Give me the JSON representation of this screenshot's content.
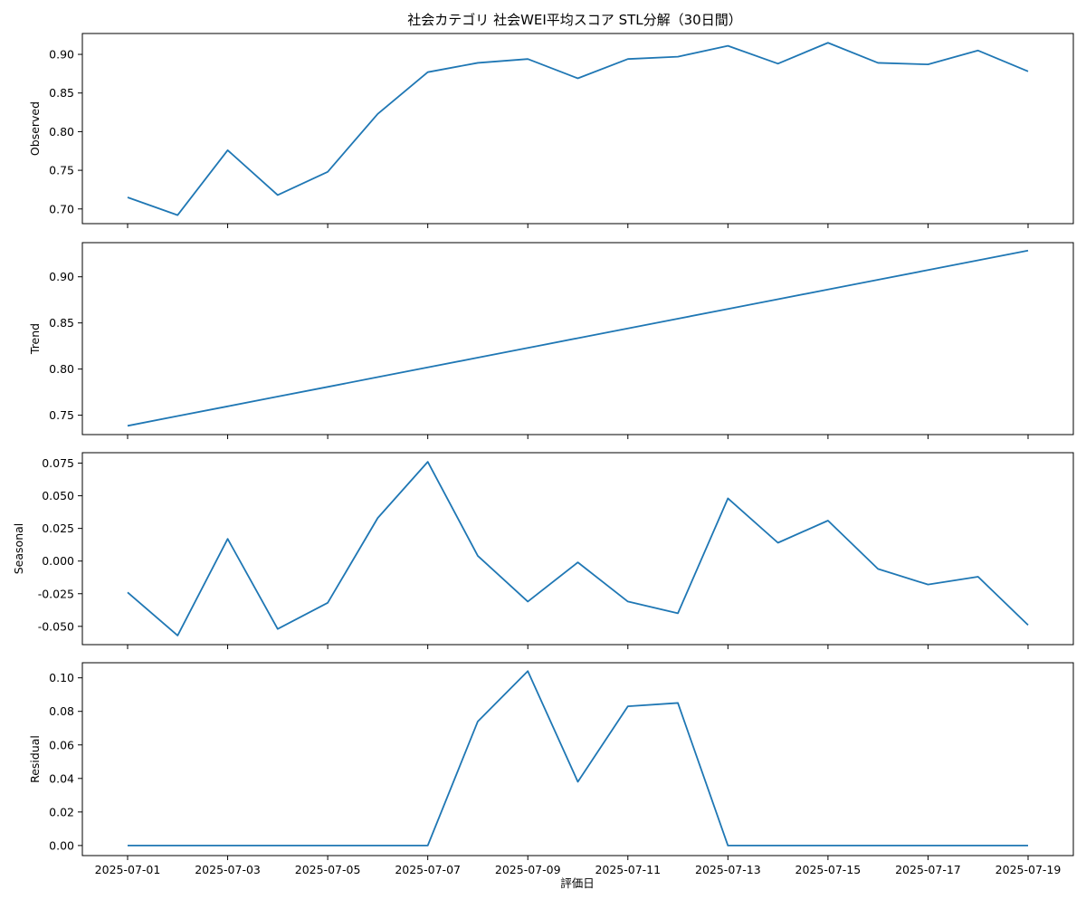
{
  "chart_data": {
    "type": "line",
    "title": "社会カテゴリ 社会WEI平均スコア STL分解（30日間）",
    "xlabel": "評価日",
    "x": [
      "2025-07-01",
      "2025-07-02",
      "2025-07-03",
      "2025-07-04",
      "2025-07-05",
      "2025-07-06",
      "2025-07-07",
      "2025-07-08",
      "2025-07-09",
      "2025-07-10",
      "2025-07-11",
      "2025-07-12",
      "2025-07-13",
      "2025-07-14",
      "2025-07-15",
      "2025-07-16",
      "2025-07-17",
      "2025-07-18",
      "2025-07-19"
    ],
    "x_ticks": [
      "2025-07-01",
      "2025-07-03",
      "2025-07-05",
      "2025-07-07",
      "2025-07-09",
      "2025-07-11",
      "2025-07-13",
      "2025-07-15",
      "2025-07-17",
      "2025-07-19"
    ],
    "line_color": "#1f77b4",
    "grid": false,
    "panels": [
      {
        "name": "observed",
        "ylabel": "Observed",
        "ylim": [
          0.681,
          0.927
        ],
        "yticks": [
          0.7,
          0.75,
          0.8,
          0.85,
          0.9
        ],
        "tick_decimals": 2,
        "values": [
          0.715,
          0.692,
          0.776,
          0.718,
          0.748,
          0.823,
          0.877,
          0.889,
          0.894,
          0.869,
          0.894,
          0.897,
          0.911,
          0.888,
          0.915,
          0.889,
          0.887,
          0.905,
          0.878
        ]
      },
      {
        "name": "trend",
        "ylabel": "Trend",
        "ylim": [
          0.729,
          0.937
        ],
        "yticks": [
          0.75,
          0.8,
          0.85,
          0.9
        ],
        "tick_decimals": 2,
        "values": [
          0.7385,
          0.7491,
          0.7596,
          0.7702,
          0.7807,
          0.7913,
          0.8018,
          0.8124,
          0.8229,
          0.8335,
          0.844,
          0.8546,
          0.8651,
          0.8757,
          0.8862,
          0.8968,
          0.9073,
          0.9179,
          0.9284
        ]
      },
      {
        "name": "seasonal",
        "ylabel": "Seasonal",
        "ylim": [
          -0.064,
          0.083
        ],
        "yticks": [
          -0.05,
          -0.025,
          0.0,
          0.025,
          0.05,
          0.075
        ],
        "tick_decimals": 3,
        "values": [
          -0.024,
          -0.057,
          0.017,
          -0.052,
          -0.032,
          0.033,
          0.076,
          0.004,
          -0.031,
          -0.001,
          -0.031,
          -0.04,
          0.048,
          0.014,
          0.031,
          -0.006,
          -0.018,
          -0.012,
          -0.049
        ]
      },
      {
        "name": "residual",
        "ylabel": "Residual",
        "ylim": [
          -0.006,
          0.109
        ],
        "yticks": [
          0.0,
          0.02,
          0.04,
          0.06,
          0.08,
          0.1
        ],
        "tick_decimals": 2,
        "values": [
          0.0,
          0.0,
          0.0,
          0.0,
          0.0,
          0.0,
          0.0,
          0.074,
          0.104,
          0.038,
          0.083,
          0.085,
          0.0,
          0.0,
          0.0,
          0.0,
          0.0,
          0.0,
          0.0
        ]
      }
    ]
  }
}
